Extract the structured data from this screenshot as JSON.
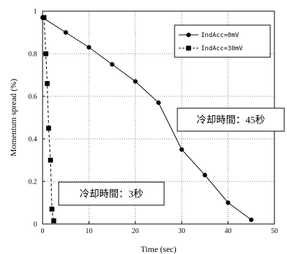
{
  "chart_data": {
    "type": "line",
    "xlabel": "Time (sec)",
    "ylabel": "Momentum spread (%)",
    "xlim": [
      0,
      50
    ],
    "ylim": [
      0,
      1
    ],
    "x_ticks": [
      "0",
      "10",
      "20",
      "30",
      "40",
      "50"
    ],
    "y_ticks": [
      "0",
      "0.2",
      "0.4",
      "0.6",
      "0.8",
      "1"
    ],
    "grid": true,
    "legend_position": "top-right",
    "series": [
      {
        "name": "IndAcc=0mV",
        "marker": "circle",
        "line_style": "solid",
        "color": "#000000",
        "x": [
          0,
          5,
          10,
          15,
          20,
          25,
          30,
          35,
          40,
          45
        ],
        "y": [
          0.97,
          0.9,
          0.83,
          0.75,
          0.67,
          0.57,
          0.35,
          0.23,
          0.1,
          0.02
        ]
      },
      {
        "name": "IndAcc=30mV",
        "marker": "square",
        "line_style": "dashed",
        "color": "#000000",
        "x": [
          0.3,
          0.7,
          1.0,
          1.3,
          1.7,
          2.0,
          2.4
        ],
        "y": [
          0.97,
          0.8,
          0.66,
          0.45,
          0.3,
          0.07,
          0.015
        ]
      }
    ],
    "annotations": [
      {
        "text": "冷却時間：45秒"
      },
      {
        "text": "冷却時間：3秒"
      }
    ]
  }
}
